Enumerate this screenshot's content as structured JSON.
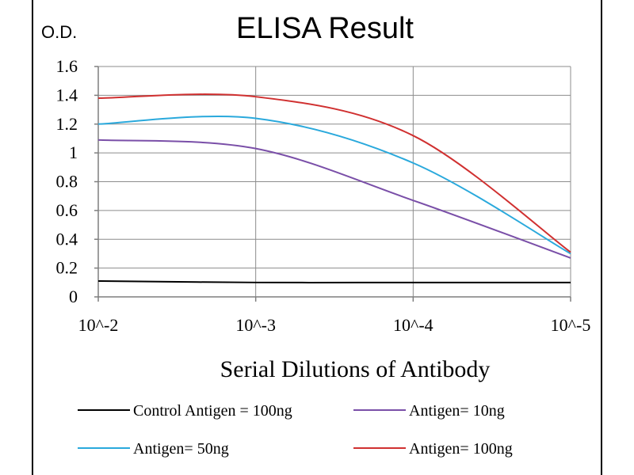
{
  "chart_data": {
    "type": "line",
    "title": "ELISA Result",
    "ylabel": "O.D.",
    "xlabel": "Serial Dilutions of Antibody",
    "x_ticks": [
      "10^-2",
      "10^-3",
      "10^-4",
      "10^-5"
    ],
    "y_ticks": [
      "0",
      "0.2",
      "0.4",
      "0.6",
      "0.8",
      "1",
      "1.2",
      "1.4",
      "1.6"
    ],
    "ylim": [
      0,
      1.6
    ],
    "grid": true,
    "legend_position": "bottom",
    "series": [
      {
        "name": "Control Antigen = 100ng",
        "color": "#000000",
        "values": [
          0.11,
          0.1,
          0.1,
          0.1
        ]
      },
      {
        "name": "Antigen= 10ng",
        "color": "#7a4fa8",
        "values": [
          1.09,
          1.03,
          0.67,
          0.27
        ]
      },
      {
        "name": "Antigen= 50ng",
        "color": "#2aa9dc",
        "values": [
          1.2,
          1.24,
          0.93,
          0.3
        ]
      },
      {
        "name": "Antigen= 100ng",
        "color": "#d03030",
        "values": [
          1.38,
          1.39,
          1.12,
          0.31
        ]
      }
    ]
  }
}
